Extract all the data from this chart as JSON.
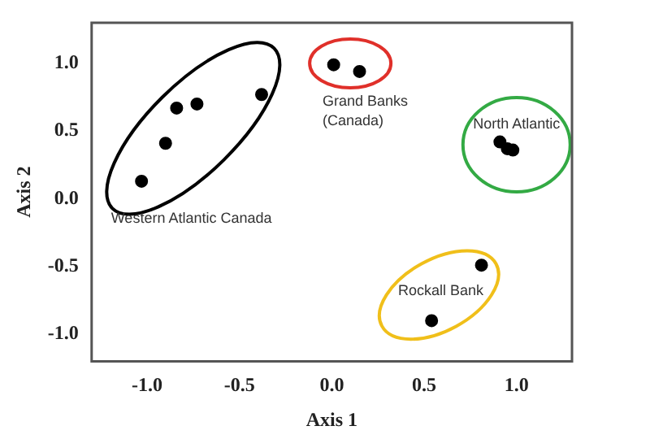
{
  "chart_data": {
    "type": "scatter",
    "xlabel": "Axis 1",
    "ylabel": "Axis 2",
    "xlim": [
      -1.3,
      1.3
    ],
    "ylim": [
      -1.2,
      1.3
    ],
    "xticks": [
      {
        "value": -1,
        "label": "-1.0"
      },
      {
        "value": -0.5,
        "label": "-0.5"
      },
      {
        "value": 0,
        "label": "0.0"
      },
      {
        "value": 0.5,
        "label": "0.5"
      },
      {
        "value": 1,
        "label": "1.0"
      }
    ],
    "yticks": [
      {
        "value": -1,
        "label": "-1.0"
      },
      {
        "value": -0.5,
        "label": "-0.5"
      },
      {
        "value": 0,
        "label": "0.0"
      },
      {
        "value": 0.5,
        "label": "0.5"
      },
      {
        "value": 1,
        "label": "1.0"
      }
    ],
    "grid": false,
    "legend": false,
    "marker": "circle",
    "series": [
      {
        "name": "Western Atlantic Canada",
        "color": "#000000",
        "x": [
          -1.03,
          -0.9,
          -0.84,
          -0.73,
          -0.38
        ],
        "values": [
          0.13,
          0.41,
          0.67,
          0.7,
          0.77
        ]
      },
      {
        "name": "Grand Banks (Canada)",
        "color": "#000000",
        "x": [
          0.01,
          0.15
        ],
        "values": [
          0.99,
          0.94
        ]
      },
      {
        "name": "North Atlantic",
        "color": "#000000",
        "x": [
          0.91,
          0.95,
          0.98
        ],
        "values": [
          0.42,
          0.37,
          0.36
        ]
      },
      {
        "name": "Rockall Bank",
        "color": "#000000",
        "x": [
          0.81,
          0.54
        ],
        "values": [
          -0.49,
          -0.9
        ]
      }
    ]
  }
}
